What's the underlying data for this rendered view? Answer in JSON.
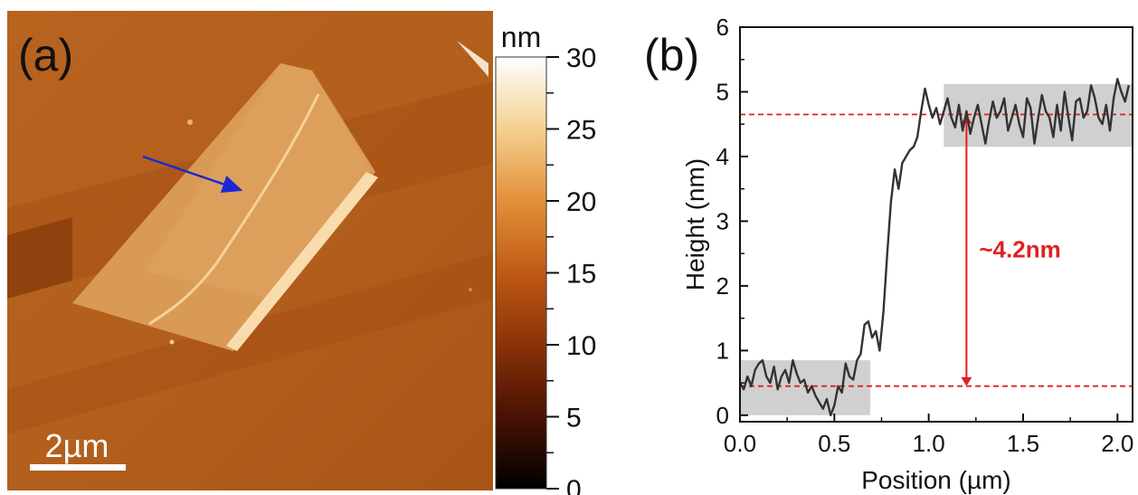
{
  "panel_a": {
    "label": "(a)",
    "scale_bar": "2µm",
    "colorbar": {
      "unit": "nm",
      "range": [
        0,
        30
      ],
      "ticks": [
        "0",
        "5",
        "10",
        "15",
        "20",
        "25",
        "30"
      ],
      "colors": [
        "#000000",
        "#4a1204",
        "#8a3208",
        "#c05a14",
        "#e2913a",
        "#f4cf8e",
        "#ffffff"
      ]
    }
  },
  "panel_b": {
    "label": "(b)",
    "annotation": "~4.2nm"
  },
  "chart_data": {
    "type": "line",
    "xlabel": "Position (µm)",
    "ylabel": "Height (nm)",
    "xlim": [
      0,
      2.08
    ],
    "ylim": [
      -0.1,
      6
    ],
    "xticks": [
      "0.0",
      "0.5",
      "1.0",
      "1.5",
      "2.0"
    ],
    "yticks": [
      "0",
      "1",
      "2",
      "3",
      "4",
      "5",
      "6"
    ],
    "line_color": "#333333",
    "series": [
      {
        "x": [
          0.0,
          0.02,
          0.04,
          0.06,
          0.08,
          0.1,
          0.12,
          0.14,
          0.16,
          0.18,
          0.2,
          0.22,
          0.24,
          0.26,
          0.28,
          0.3,
          0.32,
          0.34,
          0.36,
          0.38,
          0.4,
          0.42,
          0.44,
          0.46,
          0.48,
          0.5,
          0.52,
          0.54,
          0.56,
          0.58,
          0.6,
          0.62,
          0.64,
          0.66,
          0.68,
          0.7,
          0.72,
          0.74,
          0.76,
          0.78,
          0.8,
          0.82,
          0.84,
          0.86,
          0.88,
          0.9,
          0.92,
          0.94,
          0.96,
          0.98,
          1.0,
          1.02,
          1.04,
          1.06,
          1.08,
          1.1,
          1.12,
          1.14,
          1.16,
          1.18,
          1.2,
          1.22,
          1.24,
          1.26,
          1.28,
          1.3,
          1.32,
          1.34,
          1.36,
          1.38,
          1.4,
          1.42,
          1.44,
          1.46,
          1.48,
          1.5,
          1.52,
          1.54,
          1.56,
          1.58,
          1.6,
          1.62,
          1.64,
          1.66,
          1.68,
          1.7,
          1.72,
          1.74,
          1.76,
          1.78,
          1.8,
          1.82,
          1.84,
          1.86,
          1.88,
          1.9,
          1.92,
          1.94,
          1.96,
          1.98,
          2.0,
          2.02,
          2.04,
          2.06
        ],
        "y": [
          0.5,
          0.4,
          0.6,
          0.45,
          0.7,
          0.8,
          0.85,
          0.6,
          0.5,
          0.75,
          0.4,
          0.6,
          0.7,
          0.5,
          0.85,
          0.65,
          0.5,
          0.55,
          0.35,
          0.45,
          0.3,
          0.2,
          0.1,
          0.25,
          0.0,
          0.15,
          0.45,
          0.35,
          0.8,
          0.6,
          0.55,
          0.85,
          0.95,
          1.4,
          1.45,
          1.2,
          1.3,
          1.0,
          1.6,
          2.5,
          3.3,
          3.8,
          3.5,
          3.9,
          4.0,
          4.1,
          4.15,
          4.3,
          4.7,
          5.05,
          4.8,
          4.6,
          4.75,
          4.5,
          4.7,
          4.9,
          4.6,
          4.45,
          4.8,
          4.4,
          4.7,
          4.35,
          4.6,
          4.8,
          4.5,
          4.2,
          4.55,
          4.85,
          4.6,
          4.7,
          4.9,
          4.4,
          4.6,
          4.8,
          4.5,
          4.3,
          4.9,
          4.75,
          4.2,
          4.6,
          4.95,
          4.7,
          4.6,
          4.3,
          4.8,
          4.4,
          5.0,
          4.6,
          4.25,
          4.85,
          4.9,
          4.6,
          4.7,
          5.1,
          4.9,
          4.6,
          4.5,
          4.8,
          4.4,
          4.9,
          5.2,
          5.0,
          4.85,
          5.1
        ]
      }
    ],
    "shaded_regions": [
      {
        "x": [
          0.0,
          0.69
        ],
        "y": [
          0.0,
          0.85
        ]
      },
      {
        "x": [
          1.08,
          2.08
        ],
        "y": [
          4.15,
          5.12
        ]
      }
    ],
    "reference_lines": [
      0.45,
      4.65
    ],
    "step_arrow": {
      "x": 1.2,
      "from": 0.45,
      "to": 4.65
    }
  }
}
